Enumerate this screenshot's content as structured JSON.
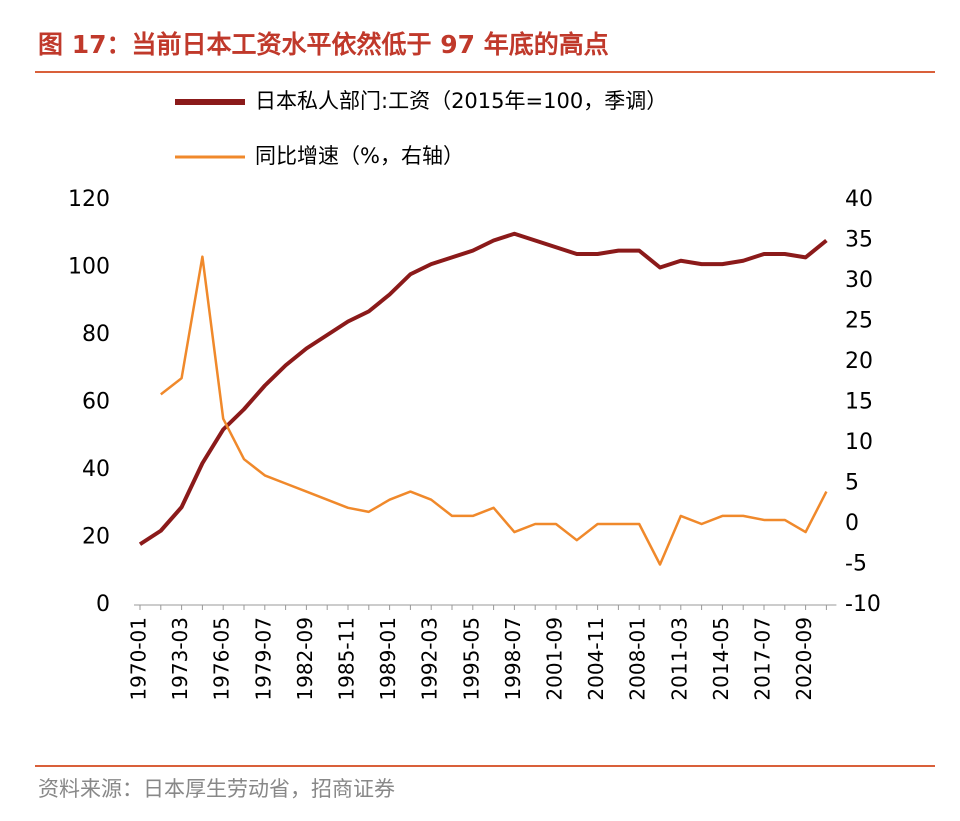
{
  "title": "图 17：当前日本工资水平依然低于 97 年底的高点",
  "source": "资料来源：日本厚生劳动省，招商证券",
  "chart_data": {
    "type": "line",
    "categories": [
      "1970-01",
      null,
      "1973-03",
      null,
      "1976-05",
      null,
      "1979-07",
      null,
      "1982-09",
      null,
      "1985-11",
      null,
      "1989-01",
      null,
      "1992-03",
      null,
      "1995-05",
      null,
      "1998-07",
      null,
      "2001-09",
      null,
      "2004-11",
      null,
      "2008-01",
      null,
      "2011-03",
      null,
      "2014-05",
      null,
      "2017-07",
      null,
      "2020-09",
      null
    ],
    "series": [
      {
        "name": "日本私人部门:工资（2015年=100，季调）",
        "color": "#8b1a1a",
        "values": [
          18,
          22,
          29,
          42,
          52,
          58,
          65,
          71,
          76,
          80,
          84,
          87,
          92,
          98,
          101,
          103,
          105,
          108,
          110,
          108,
          106,
          104,
          104,
          105,
          105,
          100,
          102,
          101,
          101,
          102,
          104,
          104,
          103,
          108
        ]
      },
      {
        "name": "同比增速（%，右轴）",
        "color": "#f0892b",
        "axis": "y2",
        "values": [
          null,
          16,
          18,
          33,
          13,
          8,
          6,
          5,
          4,
          3,
          2,
          1.5,
          3,
          4,
          3,
          1,
          1,
          2,
          -1,
          0,
          0,
          -2,
          0,
          0,
          0,
          -5,
          1,
          0,
          1,
          1,
          0.5,
          0.5,
          -1,
          4
        ]
      }
    ],
    "ylim": [
      0,
      120
    ],
    "yticks": [
      0,
      20,
      40,
      60,
      80,
      100,
      120
    ],
    "y2lim": [
      -10,
      40
    ],
    "y2ticks": [
      -10,
      -5,
      0,
      5,
      10,
      15,
      20,
      25,
      30,
      35,
      40
    ],
    "grid": false
  }
}
